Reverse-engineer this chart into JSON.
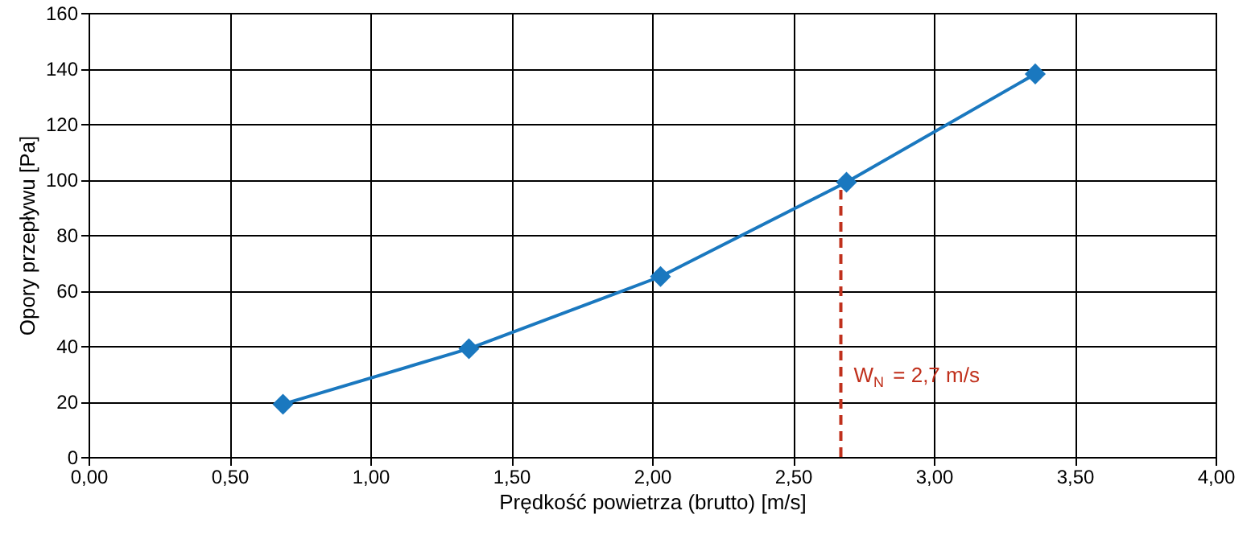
{
  "chart_data": {
    "type": "line",
    "xlabel": "Prędkość powietrza (brutto) [m/s]",
    "ylabel": "Opory przepływu [Pa]",
    "x": [
      0.69,
      1.35,
      2.03,
      2.69,
      3.36
    ],
    "series": [
      {
        "color": "#1a78bf",
        "values": [
          19,
          39,
          65,
          99,
          138
        ]
      }
    ],
    "xlim": [
      0,
      4
    ],
    "xticks": [
      {
        "value": 0,
        "label": "0,00"
      },
      {
        "value": 0.5,
        "label": "0,50"
      },
      {
        "value": 1,
        "label": "1,00"
      },
      {
        "value": 1.5,
        "label": "1,50"
      },
      {
        "value": 2,
        "label": "2,00"
      },
      {
        "value": 2.5,
        "label": "2,50"
      },
      {
        "value": 3,
        "label": "3,00"
      },
      {
        "value": 3.5,
        "label": "3,50"
      },
      {
        "value": 4,
        "label": "4,00"
      }
    ],
    "ylim": [
      0,
      160
    ],
    "yticks": [
      0,
      20,
      40,
      60,
      80,
      100,
      120,
      140,
      160
    ],
    "grid": true,
    "marker": "diamond",
    "line_style": "solid",
    "ref_lines": [
      {
        "axis": "x",
        "value": 2.67,
        "label": "W$_{N}$ = 2,7 m/s",
        "color": "#c0301c",
        "line_style": "dashed"
      }
    ]
  }
}
